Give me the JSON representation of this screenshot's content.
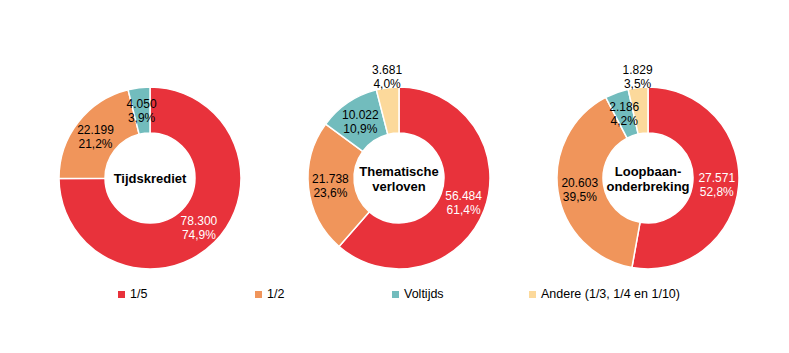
{
  "chart_data": [
    {
      "type": "pie",
      "title": "Tijdskrediet",
      "categories": [
        "1/5",
        "1/2",
        "Voltijds"
      ],
      "values": [
        78300,
        22199,
        4050
      ],
      "value_labels": [
        "78.300",
        "22.199",
        "4.050"
      ],
      "percentages": [
        74.9,
        21.2,
        3.9
      ],
      "percentage_labels": [
        "74,9%",
        "21,2%",
        "3,9%"
      ],
      "colors": [
        "#e8323b",
        "#f0955b",
        "#72bcbd"
      ],
      "data_labels": true
    },
    {
      "type": "pie",
      "title": "Thematische verloven",
      "categories": [
        "1/5",
        "1/2",
        "Voltijds",
        "Andere (1/3, 1/4 en 1/10)"
      ],
      "values": [
        56484,
        21738,
        10022,
        3681
      ],
      "value_labels": [
        "56.484",
        "21.738",
        "10.022",
        "3.681"
      ],
      "percentages": [
        61.4,
        23.6,
        10.9,
        4.0
      ],
      "percentage_labels": [
        "61,4%",
        "23,6%",
        "10,9%",
        "4,0%"
      ],
      "colors": [
        "#e8323b",
        "#f0955b",
        "#72bcbd",
        "#fcd99b"
      ],
      "data_labels": true,
      "legend": "bottom"
    },
    {
      "type": "pie",
      "title": "Loopbaan-onderbreking",
      "categories": [
        "1/5",
        "1/2",
        "Voltijds",
        "Andere (1/3, 1/4 en 1/10)"
      ],
      "values": [
        27571,
        20603,
        2186,
        1829
      ],
      "value_labels": [
        "27.571",
        "20.603",
        "2.186",
        "1.829"
      ],
      "percentages": [
        52.8,
        39.5,
        4.2,
        3.5
      ],
      "percentage_labels": [
        "52,8%",
        "39,5%",
        "4,2%",
        "3,5%"
      ],
      "colors": [
        "#e8323b",
        "#f0955b",
        "#72bcbd",
        "#fcd99b"
      ],
      "data_labels": true
    }
  ]
}
